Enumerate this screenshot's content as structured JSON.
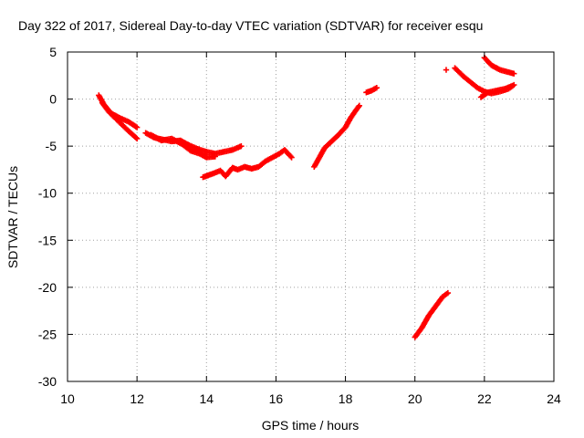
{
  "chart_data": {
    "type": "scatter",
    "title": "Day 322 of 2017, Sidereal Day-to-day VTEC variation (SDTVAR) for receiver esqu",
    "xlabel": "GPS time / hours",
    "ylabel": "SDTVAR / TECUs",
    "xlim": [
      10,
      24
    ],
    "ylim": [
      -30,
      5
    ],
    "x_ticks": [
      10,
      12,
      14,
      16,
      18,
      20,
      22,
      24
    ],
    "y_ticks": [
      -30,
      -25,
      -20,
      -15,
      -10,
      -5,
      0,
      5
    ],
    "x_tick_labels": [
      "10",
      "12",
      "14",
      "16",
      "18",
      "20",
      "22",
      "24"
    ],
    "y_tick_labels": [
      "-30",
      "-25",
      "-20",
      "-15",
      "-10",
      "-5",
      "0",
      "5"
    ],
    "grid": true,
    "marker": "plus",
    "color": "#ff0000",
    "segments": [
      {
        "points": [
          [
            10.9,
            0.4
          ],
          [
            11.05,
            -0.6
          ],
          [
            11.25,
            -1.5
          ],
          [
            11.5,
            -2.0
          ],
          [
            11.75,
            -2.4
          ],
          [
            12.0,
            -3.0
          ]
        ]
      },
      {
        "points": [
          [
            11.0,
            -0.4
          ],
          [
            11.2,
            -1.4
          ],
          [
            11.45,
            -2.3
          ],
          [
            11.7,
            -3.2
          ],
          [
            12.0,
            -4.2
          ]
        ]
      },
      {
        "points": [
          [
            12.25,
            -3.6
          ],
          [
            12.5,
            -4.1
          ],
          [
            12.75,
            -4.3
          ],
          [
            13.0,
            -4.5
          ],
          [
            13.25,
            -4.4
          ],
          [
            13.5,
            -4.9
          ],
          [
            13.75,
            -5.3
          ],
          [
            14.0,
            -5.6
          ],
          [
            14.25,
            -5.8
          ],
          [
            14.5,
            -5.6
          ],
          [
            14.75,
            -5.4
          ],
          [
            15.0,
            -5.0
          ]
        ]
      },
      {
        "points": [
          [
            12.4,
            -3.8
          ],
          [
            12.7,
            -4.4
          ],
          [
            13.0,
            -4.2
          ],
          [
            13.3,
            -4.8
          ],
          [
            13.55,
            -5.5
          ],
          [
            13.8,
            -5.8
          ],
          [
            14.0,
            -6.2
          ],
          [
            14.25,
            -6.1
          ]
        ]
      },
      {
        "points": [
          [
            13.9,
            -8.3
          ],
          [
            14.2,
            -7.9
          ],
          [
            14.4,
            -7.6
          ],
          [
            14.55,
            -8.2
          ],
          [
            14.75,
            -7.3
          ],
          [
            14.9,
            -7.5
          ],
          [
            15.1,
            -7.2
          ],
          [
            15.3,
            -7.4
          ],
          [
            15.5,
            -7.2
          ],
          [
            15.7,
            -6.6
          ],
          [
            15.9,
            -6.2
          ],
          [
            16.1,
            -5.8
          ],
          [
            16.25,
            -5.4
          ],
          [
            16.45,
            -6.2
          ]
        ]
      },
      {
        "points": [
          [
            17.1,
            -7.2
          ],
          [
            17.25,
            -6.2
          ],
          [
            17.4,
            -5.2
          ],
          [
            17.6,
            -4.5
          ],
          [
            17.8,
            -3.8
          ],
          [
            18.0,
            -3.0
          ],
          [
            18.15,
            -2.0
          ],
          [
            18.3,
            -1.2
          ],
          [
            18.4,
            -0.7
          ]
        ]
      },
      {
        "points": [
          [
            18.6,
            0.7
          ],
          [
            18.75,
            0.9
          ],
          [
            18.9,
            1.2
          ]
        ]
      },
      {
        "points": [
          [
            20.0,
            -25.3
          ],
          [
            20.2,
            -24.3
          ],
          [
            20.4,
            -23.0
          ],
          [
            20.6,
            -22.0
          ],
          [
            20.8,
            -21.0
          ],
          [
            20.95,
            -20.6
          ]
        ]
      },
      {
        "points": [
          [
            20.9,
            3.1
          ]
        ]
      },
      {
        "points": [
          [
            21.15,
            3.3
          ],
          [
            21.4,
            2.4
          ],
          [
            21.6,
            1.8
          ],
          [
            21.8,
            1.2
          ],
          [
            22.0,
            0.8
          ],
          [
            22.2,
            0.6
          ],
          [
            22.45,
            0.8
          ],
          [
            22.7,
            1.1
          ],
          [
            22.85,
            1.5
          ]
        ]
      },
      {
        "points": [
          [
            21.9,
            0.2
          ],
          [
            22.1,
            0.7
          ],
          [
            22.35,
            0.9
          ],
          [
            22.6,
            1.1
          ],
          [
            22.8,
            1.4
          ]
        ]
      },
      {
        "points": [
          [
            22.0,
            4.4
          ],
          [
            22.2,
            3.6
          ],
          [
            22.45,
            3.1
          ],
          [
            22.65,
            2.9
          ],
          [
            22.85,
            2.7
          ]
        ]
      }
    ]
  }
}
